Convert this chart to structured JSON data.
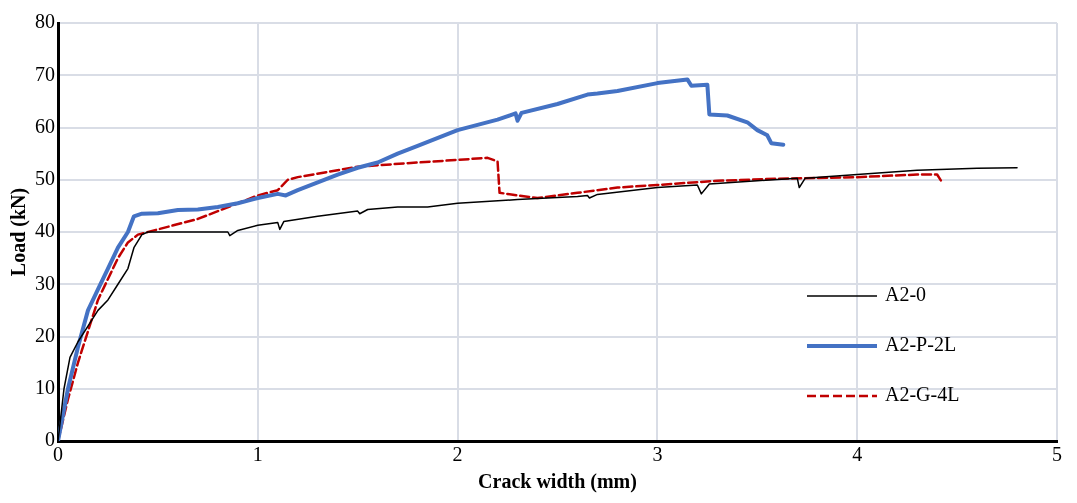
{
  "chart_data": {
    "type": "line",
    "xlabel": "Crack width (mm)",
    "ylabel": "Load (kN)",
    "xlim": [
      0,
      5
    ],
    "xticks": [
      0,
      1,
      2,
      3,
      4,
      5
    ],
    "ylim": [
      0,
      80
    ],
    "yticks": [
      0,
      10,
      20,
      30,
      40,
      50,
      60,
      70,
      80
    ],
    "grid": true,
    "legend": "bottom right",
    "marker": "none",
    "series": [
      {
        "name": "A2-0",
        "color": "#000000",
        "line_style": "solid",
        "x": [
          0,
          0.03,
          0.06,
          0.1,
          0.15,
          0.2,
          0.25,
          0.3,
          0.35,
          0.38,
          0.42,
          0.45,
          0.6,
          0.85,
          0.86,
          0.9,
          1.0,
          1.1,
          1.11,
          1.13,
          1.3,
          1.5,
          1.51,
          1.55,
          1.7,
          1.85,
          2.0,
          2.3,
          2.6,
          2.65,
          2.66,
          2.7,
          3.0,
          3.2,
          3.22,
          3.26,
          3.5,
          3.7,
          3.71,
          3.74,
          4.0,
          4.3,
          4.6,
          4.8
        ],
        "values": [
          0,
          10,
          16,
          19,
          22,
          25,
          27,
          30,
          33,
          37,
          39.5,
          40,
          40,
          40,
          39.3,
          40.3,
          41.3,
          41.8,
          40.5,
          42,
          43,
          44,
          43.5,
          44.3,
          44.8,
          44.8,
          45.5,
          46.2,
          46.8,
          47,
          46.5,
          47.2,
          48.5,
          49,
          47.3,
          49.2,
          49.8,
          50.3,
          48.5,
          50.3,
          51,
          51.8,
          52.2,
          52.3
        ]
      },
      {
        "name": "A2-P-2L",
        "color": "#4472c4",
        "line_style": "solid",
        "x": [
          0,
          0.05,
          0.1,
          0.15,
          0.2,
          0.25,
          0.3,
          0.35,
          0.38,
          0.42,
          0.5,
          0.6,
          0.7,
          0.8,
          0.9,
          1.0,
          1.1,
          1.14,
          1.2,
          1.3,
          1.4,
          1.5,
          1.6,
          1.7,
          1.8,
          2.0,
          2.2,
          2.29,
          2.3,
          2.32,
          2.5,
          2.65,
          2.7,
          2.8,
          3.0,
          3.15,
          3.17,
          3.25,
          3.26,
          3.35,
          3.45,
          3.5,
          3.55,
          3.57,
          3.63
        ],
        "values": [
          0,
          10,
          18,
          25,
          29,
          33,
          37,
          40,
          43,
          43.5,
          43.6,
          44.2,
          44.3,
          44.8,
          45.5,
          46.5,
          47.3,
          47,
          48,
          49.5,
          51,
          52.3,
          53.3,
          55,
          56.5,
          59.5,
          61.5,
          62.7,
          61.3,
          62.8,
          64.5,
          66.3,
          66.5,
          67,
          68.5,
          69.2,
          68,
          68.2,
          62.5,
          62.3,
          61,
          59.5,
          58.5,
          57,
          56.7
        ]
      },
      {
        "name": "A2-G-4L",
        "color": "#c00000",
        "line_style": "dashed",
        "x": [
          0,
          0.05,
          0.1,
          0.15,
          0.2,
          0.25,
          0.3,
          0.35,
          0.4,
          0.5,
          0.7,
          0.8,
          0.9,
          1.0,
          1.1,
          1.15,
          1.2,
          1.5,
          1.8,
          2.0,
          2.15,
          2.2,
          2.21,
          2.3,
          2.4,
          2.6,
          2.8,
          3.0,
          3.3,
          3.6,
          4.0,
          4.3,
          4.4,
          4.42
        ],
        "values": [
          0,
          8,
          15,
          21,
          27,
          31,
          35,
          38,
          39.5,
          40.5,
          42.5,
          44,
          45.5,
          47,
          48,
          50,
          50.5,
          52.5,
          53.3,
          53.8,
          54.2,
          53.5,
          47.5,
          47,
          46.5,
          47.5,
          48.5,
          49,
          49.8,
          50.2,
          50.5,
          51,
          51,
          49.8
        ]
      }
    ]
  }
}
